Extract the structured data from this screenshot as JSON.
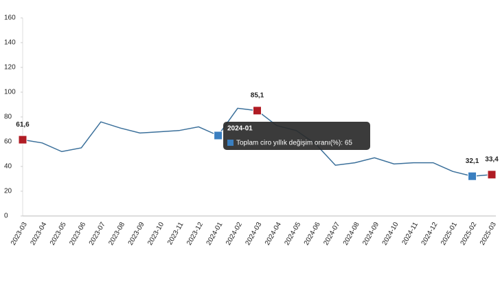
{
  "chart_data": {
    "type": "line",
    "categories": [
      "2023-03",
      "2023-04",
      "2023-05",
      "2023-06",
      "2023-07",
      "2023-08",
      "2023-09",
      "2023-10",
      "2023-11",
      "2023-12",
      "2024-01",
      "2024-02",
      "2024-03",
      "2024-04",
      "2024-05",
      "2024-06",
      "2024-07",
      "2024-08",
      "2024-09",
      "2024-10",
      "2024-11",
      "2024-12",
      "2025-01",
      "2025-02",
      "2025-03"
    ],
    "series": [
      {
        "name": "Toplam ciro yıllık değişim oranı(%)",
        "color": "#3a6f9a",
        "values": [
          61.6,
          59,
          52,
          55,
          76,
          71,
          67,
          68,
          69,
          72,
          65,
          87,
          85.1,
          73,
          69,
          58,
          41,
          43,
          47,
          42,
          43,
          43,
          36,
          32.1,
          33.4
        ],
        "value_labels": [
          "61,6",
          null,
          null,
          null,
          null,
          null,
          null,
          null,
          null,
          null,
          null,
          null,
          "85,1",
          null,
          null,
          null,
          null,
          null,
          null,
          null,
          null,
          null,
          null,
          "32,1",
          "33,4"
        ],
        "marker_colors": [
          "#b01c24",
          null,
          null,
          null,
          null,
          null,
          null,
          null,
          null,
          null,
          "#3a7fc0",
          null,
          "#b01c24",
          null,
          null,
          null,
          null,
          null,
          null,
          null,
          null,
          null,
          null,
          "#3a7fc0",
          "#b01c24"
        ]
      }
    ],
    "ylim": [
      0,
      160
    ],
    "yticks": [
      0,
      20,
      40,
      60,
      80,
      100,
      120,
      140,
      160
    ],
    "grid": false,
    "tooltip": {
      "title": "2024-01",
      "text": "Toplam ciro yıllık değişim oranı(%): 65"
    }
  }
}
